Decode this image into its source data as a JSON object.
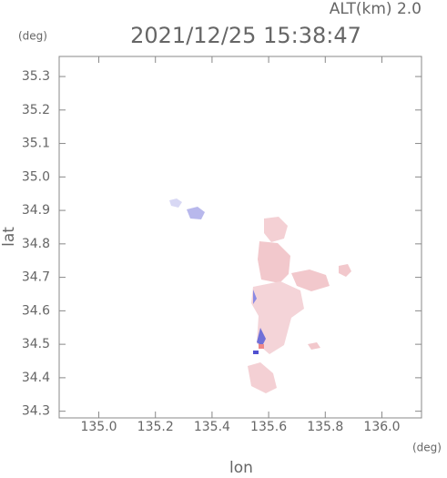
{
  "chart_data": {
    "type": "map",
    "title": "2021/12/25 15:38:47",
    "subtitle": "ALT(km) 2.0",
    "x_label": "lon",
    "y_label": "lat",
    "x_unit": "(deg)",
    "y_unit": "(deg)",
    "xlim": [
      134.86,
      136.14
    ],
    "ylim": [
      34.28,
      35.36
    ],
    "xticks": [
      {
        "value": 135,
        "label": "135.0"
      },
      135.2,
      135.4,
      135.6,
      135.8,
      {
        "value": 136,
        "label": "136.0"
      }
    ],
    "yticks": [
      35.3,
      35.2,
      35.1,
      {
        "value": 35,
        "label": "35.0"
      },
      34.9,
      34.8,
      34.7,
      34.6,
      34.5,
      34.4,
      34.3
    ]
  }
}
